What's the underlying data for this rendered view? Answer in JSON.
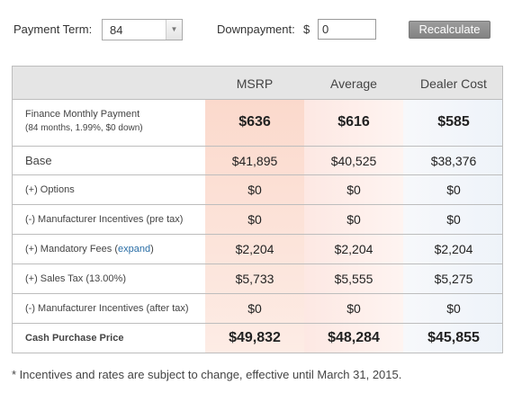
{
  "controls": {
    "term_label": "Payment Term:",
    "term_value": "84",
    "down_label": "Downpayment:",
    "dollar": "$",
    "down_value": "0",
    "recalc_label": "Recalculate"
  },
  "table": {
    "headers": [
      "MSRP",
      "Average",
      "Dealer Cost"
    ],
    "finance": {
      "label": "Finance Monthly Payment",
      "sub": "(84 months, 1.99%, $0 down)",
      "values": [
        "$636",
        "$616",
        "$585"
      ]
    },
    "base": {
      "label": "Base",
      "values": [
        "$41,895",
        "$40,525",
        "$38,376"
      ]
    },
    "options": {
      "label": "(+) Options",
      "values": [
        "$0",
        "$0",
        "$0"
      ]
    },
    "mfr_pre": {
      "label": "(-) Manufacturer Incentives (pre tax)",
      "values": [
        "$0",
        "$0",
        "$0"
      ]
    },
    "fees": {
      "label": "(+) Mandatory Fees (",
      "link": "expand",
      "close": ")",
      "values": [
        "$2,204",
        "$2,204",
        "$2,204"
      ]
    },
    "tax": {
      "label": "(+) Sales Tax (13.00%)",
      "values": [
        "$5,733",
        "$5,555",
        "$5,275"
      ]
    },
    "mfr_after": {
      "label": "(-) Manufacturer Incentives (after tax)",
      "values": [
        "$0",
        "$0",
        "$0"
      ]
    },
    "cash": {
      "label": "Cash Purchase Price",
      "values": [
        "$49,832",
        "$48,284",
        "$45,855"
      ]
    }
  },
  "footnote": "* Incentives and rates are subject to change, effective until March 31, 2015."
}
